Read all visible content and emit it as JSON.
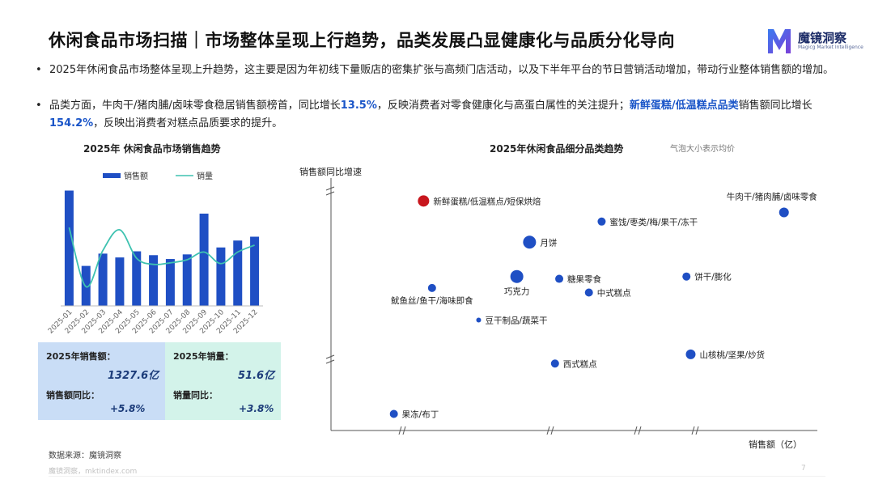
{
  "header": {
    "title": "休闲食品市场扫描｜市场整体呈现上行趋势，品类发展凸显健康化与品质分化导向",
    "logo_name": "魔镜洞察",
    "logo_sub": "Magicg Market Intelligence"
  },
  "bullets": [
    {
      "parts": [
        {
          "text": "2025年休闲食品市场整体呈现上升趋势，这主要是因为年初线下量贩店的密集扩张与高频门店活动，以及下半年平台的节日营销活动增加，带动行业整体销售额的增加。",
          "hl": false
        }
      ]
    },
    {
      "parts": [
        {
          "text": "品类方面，牛肉干/猪肉脯/卤味零食稳居销售额榜首，同比增长",
          "hl": false
        },
        {
          "text": "13.5%",
          "hl": true
        },
        {
          "text": "，反映消费者对零食健康化与高蛋白属性的关注提升；",
          "hl": false
        },
        {
          "text": "新鲜蛋糕/低温糕点品类",
          "hl": true
        },
        {
          "text": "销售额同比增长",
          "hl": false
        },
        {
          "text": "154.2%",
          "hl": true
        },
        {
          "text": "，反映出消费者对糕点品质要求的提升。",
          "hl": false
        }
      ]
    }
  ],
  "colors": {
    "bar": "#1f4fc4",
    "line": "#3ec2b0",
    "bubble": "#1f4fc4",
    "bubble_highlight": "#c8161d",
    "kpi_left_bg": "#c9ddf6",
    "kpi_right_bg": "#d3f3ea"
  },
  "chart_data": [
    {
      "type": "bar",
      "title": "2025年 休闲食品市场销售趋势",
      "categories": [
        "2025-01",
        "2025-02",
        "2025-03",
        "2025-04",
        "2025-05",
        "2025-06",
        "2025-07",
        "2025-08",
        "2025-09",
        "2025-10",
        "2025-11",
        "2025-12"
      ],
      "series": [
        {
          "name": "销售额",
          "type": "bar",
          "values": [
            150,
            52,
            68,
            63,
            71,
            66,
            61,
            67,
            120,
            76,
            85,
            90
          ]
        },
        {
          "name": "销量",
          "type": "line",
          "values": [
            102,
            25,
            72,
            99,
            62,
            54,
            56,
            60,
            70,
            55,
            70,
            79
          ]
        }
      ],
      "legend_position": "top",
      "ylim": [
        0,
        160
      ],
      "grid": false
    },
    {
      "type": "scatter",
      "title": "2025年休闲食品细分品类趋势",
      "note": "气泡大小表示均价",
      "xlabel": "销售额（亿）",
      "ylabel": "销售额同比增速",
      "xlim": [
        0,
        100
      ],
      "ylim": [
        0,
        100
      ],
      "axis_breaks": true,
      "points": [
        {
          "label": "新鲜蛋糕/低温糕点/短保烘焙",
          "x": 14,
          "y": 96,
          "size": 7,
          "highlight": true,
          "label_side": "right"
        },
        {
          "label": "牛肉干/猪肉脯/卤味零食",
          "x": 99,
          "y": 91,
          "size": 6,
          "highlight": false,
          "label_side": "above"
        },
        {
          "label": "蜜饯/枣类/梅/果干/冻干",
          "x": 56,
          "y": 87,
          "size": 5,
          "highlight": false,
          "label_side": "right"
        },
        {
          "label": "月饼",
          "x": 39,
          "y": 78,
          "size": 8,
          "highlight": false,
          "label_side": "right"
        },
        {
          "label": "巧克力",
          "x": 36,
          "y": 63,
          "size": 8,
          "highlight": false,
          "label_side": "below"
        },
        {
          "label": "糖果零食",
          "x": 46,
          "y": 62,
          "size": 5,
          "highlight": false,
          "label_side": "right"
        },
        {
          "label": "饼干/膨化",
          "x": 76,
          "y": 63,
          "size": 5,
          "highlight": false,
          "label_side": "right"
        },
        {
          "label": "中式糕点",
          "x": 53,
          "y": 56,
          "size": 5,
          "highlight": false,
          "label_side": "right"
        },
        {
          "label": "鱿鱼丝/鱼干/海味即食",
          "x": 16,
          "y": 58,
          "size": 5,
          "highlight": false,
          "label_side": "below"
        },
        {
          "label": "豆干制品/蔬菜干",
          "x": 27,
          "y": 44,
          "size": 3,
          "highlight": false,
          "label_side": "right"
        },
        {
          "label": "山核桃/坚果/炒货",
          "x": 77,
          "y": 29,
          "size": 6,
          "highlight": false,
          "label_side": "right"
        },
        {
          "label": "西式糕点",
          "x": 45,
          "y": 25,
          "size": 5,
          "highlight": false,
          "label_side": "right"
        },
        {
          "label": "果冻/布丁",
          "x": 7,
          "y": 3,
          "size": 5,
          "highlight": false,
          "label_side": "right"
        }
      ]
    }
  ],
  "kpis": [
    {
      "label": "2025年销售额：",
      "value": "1327.6亿"
    },
    {
      "label": "2025年销量：",
      "value": "51.6亿"
    },
    {
      "label": "销售额同比：",
      "value": "+5.8%"
    },
    {
      "label": "销量同比：",
      "value": "+3.8%"
    }
  ],
  "footer": {
    "source": "数据来源：魔镜洞察",
    "site": "魔镜洞察，mktindex.com",
    "page": "7"
  }
}
